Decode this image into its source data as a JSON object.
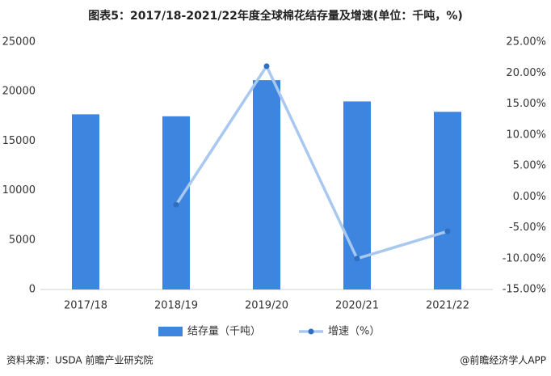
{
  "chart_data": {
    "type": "bar-line",
    "title": "图表5：2017/18-2021/22年度全球棉花结存量及增速(单位：千吨，%)",
    "categories": [
      "2017/18",
      "2018/19",
      "2019/20",
      "2020/21",
      "2021/22"
    ],
    "series": [
      {
        "name": "结存量（千吨）",
        "type": "bar",
        "color": "#3d85de",
        "values": [
          17700,
          17500,
          21150,
          19000,
          17950
        ]
      },
      {
        "name": "增速（%）",
        "type": "line",
        "axis": "y2",
        "color": "#a8c8f0",
        "marker_color": "#2f6fc2",
        "values": [
          null,
          -1.3,
          21.1,
          -10.0,
          -5.6
        ]
      }
    ],
    "ylim": [
      0,
      25000
    ],
    "yticks": [
      0,
      5000,
      10000,
      15000,
      20000,
      25000
    ],
    "y2lim": [
      -15,
      25
    ],
    "y2ticks": [
      {
        "value": -15,
        "label": "-15.00%"
      },
      {
        "value": -10,
        "label": "-10.00%"
      },
      {
        "value": -5,
        "label": "-5.00%"
      },
      {
        "value": 0,
        "label": "0.00%"
      },
      {
        "value": 5,
        "label": "5.00%"
      },
      {
        "value": 10,
        "label": "10.00%"
      },
      {
        "value": 15,
        "label": "15.00%"
      },
      {
        "value": 20,
        "label": "20.00%"
      },
      {
        "value": 25,
        "label": "25.00%"
      }
    ],
    "legend": "bottom",
    "source": "资料来源：USDA 前瞻产业研究院",
    "credit": "@前瞻经济学人APP"
  }
}
